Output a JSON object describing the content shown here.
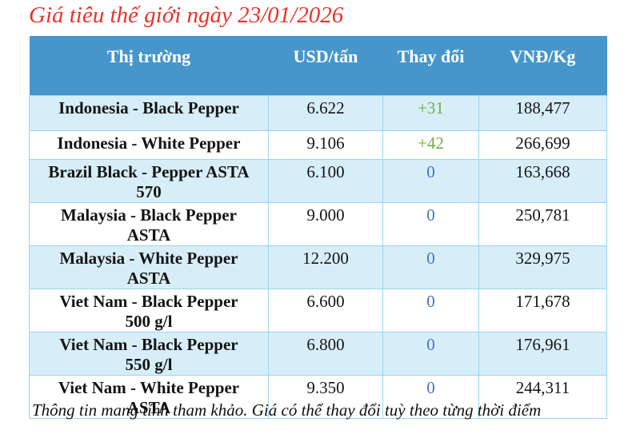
{
  "title": "Giá tiêu thế giới ngày 23/01/2026",
  "table": {
    "columns": [
      "Thị trường",
      "USD/tấn",
      "Thay đổi",
      "VNĐ/Kg"
    ],
    "rows": [
      {
        "market": "Indonesia - Black Pepper",
        "usd": "6.622",
        "change": "+31",
        "vnd": "188,477"
      },
      {
        "market": "Indonesia - White Pepper",
        "usd": "9.106",
        "change": "+42",
        "vnd": "266,699"
      },
      {
        "market": "Brazil Black - Pepper ASTA 570",
        "usd": "6.100",
        "change": "0",
        "vnd": "163,668"
      },
      {
        "market": "Malaysia - Black Pepper ASTA",
        "usd": "9.000",
        "change": "0",
        "vnd": "250,781"
      },
      {
        "market": "Malaysia - White Pepper ASTA",
        "usd": "12.200",
        "change": "0",
        "vnd": "329,975"
      },
      {
        "market": "Viet Nam - Black Pepper 500 g/l",
        "usd": "6.600",
        "change": "0",
        "vnd": "171,678"
      },
      {
        "market": "Viet Nam - Black Pepper 550 g/l",
        "usd": "6.800",
        "change": "0",
        "vnd": "176,961"
      },
      {
        "market": "Viet Nam - White Pepper ASTA",
        "usd": "9.350",
        "change": "0",
        "vnd": "244,311"
      }
    ]
  },
  "footer_note": "Thông tin mang tính tham khảo. Giá có thể thay đổi tuỳ theo từng thời điểm",
  "colors": {
    "title_red": "#e8332a",
    "header_bg": "#4696cb",
    "row_stripe_bg": "#d7eef9",
    "grid_border": "#9cd3f0",
    "change_positive": "#70ad47",
    "change_zero": "#4472c4"
  }
}
